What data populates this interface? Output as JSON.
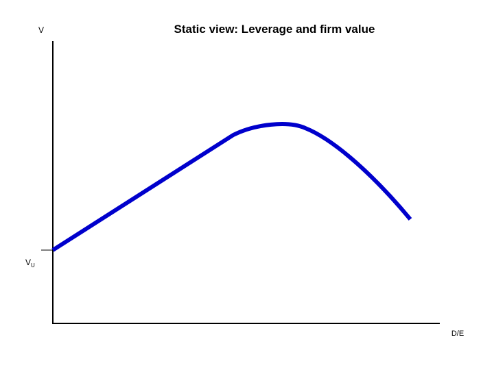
{
  "title": "Static view: Leverage and firm value",
  "y_axis": {
    "label": "V"
  },
  "x_axis": {
    "label": "D/E"
  },
  "marker": {
    "text": "V",
    "subscript": "U"
  }
}
